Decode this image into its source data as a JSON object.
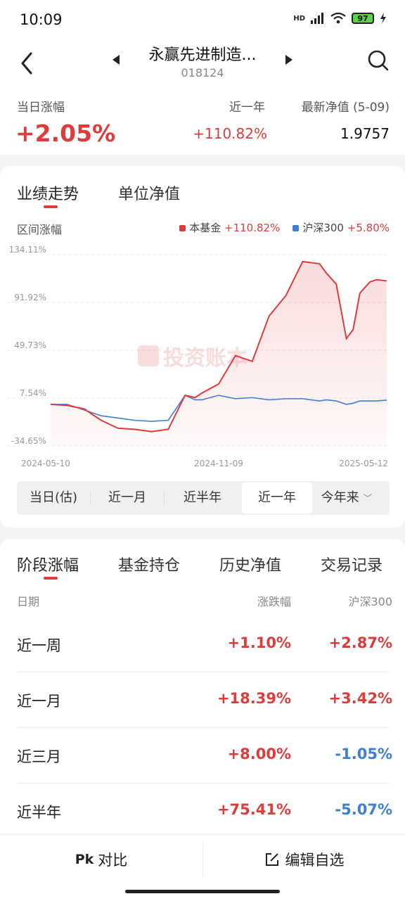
{
  "status": {
    "time": "10:09",
    "net": "HD",
    "battery": "97"
  },
  "header": {
    "title": "永赢先进制造...",
    "code": "018124"
  },
  "summary": {
    "daily_label": "当日涨幅",
    "daily_value": "+2.05%",
    "year_label": "近一年",
    "year_value": "+110.82%",
    "nav_label": "最新净值 (5-09)",
    "nav_value": "1.9757"
  },
  "chart_tabs": [
    "业绩走势",
    "单位净值"
  ],
  "range_label": "区间涨幅",
  "legend": [
    {
      "name": "本基金",
      "value": "+110.82%",
      "color": "#e03b3b"
    },
    {
      "name": "沪深300",
      "value": "+5.80%",
      "color": "#3f7fd2"
    }
  ],
  "watermark": "投资账本",
  "chart_data": {
    "type": "line",
    "ylim": [
      -34.65,
      134.11
    ],
    "yticks": [
      "134.11%",
      "91.92%",
      "49.73%",
      "7.54%",
      "-34.65%"
    ],
    "ytick_values": [
      134.11,
      91.92,
      49.73,
      7.54,
      -34.65
    ],
    "xticks": [
      "2024-05-10",
      "2024-11-09",
      "2025-05-12"
    ],
    "x": [
      0,
      0.05,
      0.1,
      0.15,
      0.2,
      0.25,
      0.3,
      0.35,
      0.4,
      0.43,
      0.45,
      0.5,
      0.55,
      0.6,
      0.65,
      0.7,
      0.75,
      0.8,
      0.82,
      0.85,
      0.88,
      0.9,
      0.92,
      0.95,
      0.97,
      1.0
    ],
    "series": [
      {
        "name": "本基金",
        "color": "#e03b3b",
        "values": [
          2,
          1,
          -2,
          -12,
          -19,
          -20,
          -22,
          -20,
          10,
          8,
          12,
          20,
          45,
          40,
          80,
          98,
          128,
          126,
          118,
          108,
          60,
          68,
          100,
          110,
          112,
          110.82
        ]
      },
      {
        "name": "沪深300",
        "color": "#3f7fd2",
        "values": [
          2,
          2,
          -3,
          -8,
          -10,
          -12,
          -13,
          -12,
          10,
          6,
          6,
          10,
          7,
          8,
          6,
          7,
          7,
          5,
          6,
          5,
          2,
          3,
          5,
          5,
          5,
          5.8
        ]
      }
    ]
  },
  "ranges": [
    "当日(估)",
    "近一月",
    "近半年",
    "近一年",
    "今年来"
  ],
  "selected_range": "近一年",
  "perf_tabs": [
    "阶段涨幅",
    "基金持仓",
    "历史净值",
    "交易记录"
  ],
  "table": {
    "headers": [
      "日期",
      "涨跌幅",
      "沪深300"
    ],
    "rows": [
      {
        "label": "近一周",
        "fund": "+1.10%",
        "index": "+2.87%"
      },
      {
        "label": "近一月",
        "fund": "+18.39%",
        "index": "+3.42%"
      },
      {
        "label": "近三月",
        "fund": "+8.00%",
        "index": "-1.05%"
      },
      {
        "label": "近半年",
        "fund": "+75.41%",
        "index": "-5.07%"
      }
    ]
  },
  "bottom": {
    "compare_label": "对比",
    "edit_label": "编辑自选"
  }
}
